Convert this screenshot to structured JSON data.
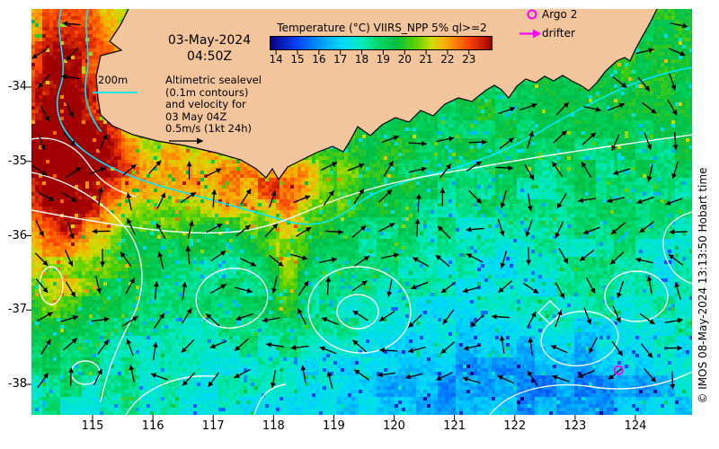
{
  "header": {
    "date": "03-May-2024",
    "time": "04:50Z"
  },
  "colorbar": {
    "title": "Temperature (°C) VIIRS_NPP 5% ql>=2",
    "ticks": [
      "14",
      "15",
      "16",
      "17",
      "18",
      "19",
      "20",
      "21",
      "22",
      "23"
    ],
    "range": [
      13.7,
      24.1
    ],
    "stops": [
      {
        "v": 13.7,
        "c": "#0a0082"
      },
      {
        "v": 15,
        "c": "#0046ff"
      },
      {
        "v": 16,
        "c": "#0096ff"
      },
      {
        "v": 17,
        "c": "#00d7ff"
      },
      {
        "v": 18,
        "c": "#00ebbe"
      },
      {
        "v": 18.8,
        "c": "#00d764"
      },
      {
        "v": 19.6,
        "c": "#00be46"
      },
      {
        "v": 20.5,
        "c": "#5ad200"
      },
      {
        "v": 21.3,
        "c": "#d2dc00"
      },
      {
        "v": 22,
        "c": "#ffa500"
      },
      {
        "v": 23,
        "c": "#ff4600"
      },
      {
        "v": 24.1,
        "c": "#a00000"
      }
    ]
  },
  "legend": {
    "argo_label": "Argo 2",
    "drifter_label": "drifter",
    "marker_color": "#ff00ff"
  },
  "notes": {
    "bathy_label": "200m",
    "bathy_color": "#00e8ff",
    "altimetry_lines": [
      "Altimetric sealevel",
      "(0.1m contours)",
      "and velocity for",
      "03 May 04Z",
      "0.5m/s (1kt 24h)"
    ]
  },
  "axes": {
    "x_ticks": [
      "115",
      "116",
      "117",
      "118",
      "119",
      "120",
      "121",
      "122",
      "123",
      "124"
    ],
    "y_ticks": [
      "-34",
      "-35",
      "-36",
      "-37",
      "-38"
    ]
  },
  "watermark": "© IMOS 08-May-2024 13:13:50 Hobart time",
  "markers": {
    "argo_lon": 123.72,
    "argo_lat": -37.81
  },
  "map": {
    "land_color": "#f2c59c",
    "contour_color": "#ffffff",
    "arrow_color": "#000000",
    "lon_min": 113.99,
    "lon_max": 124.94,
    "lat_min": -38.41,
    "lat_max": -32.95
  }
}
